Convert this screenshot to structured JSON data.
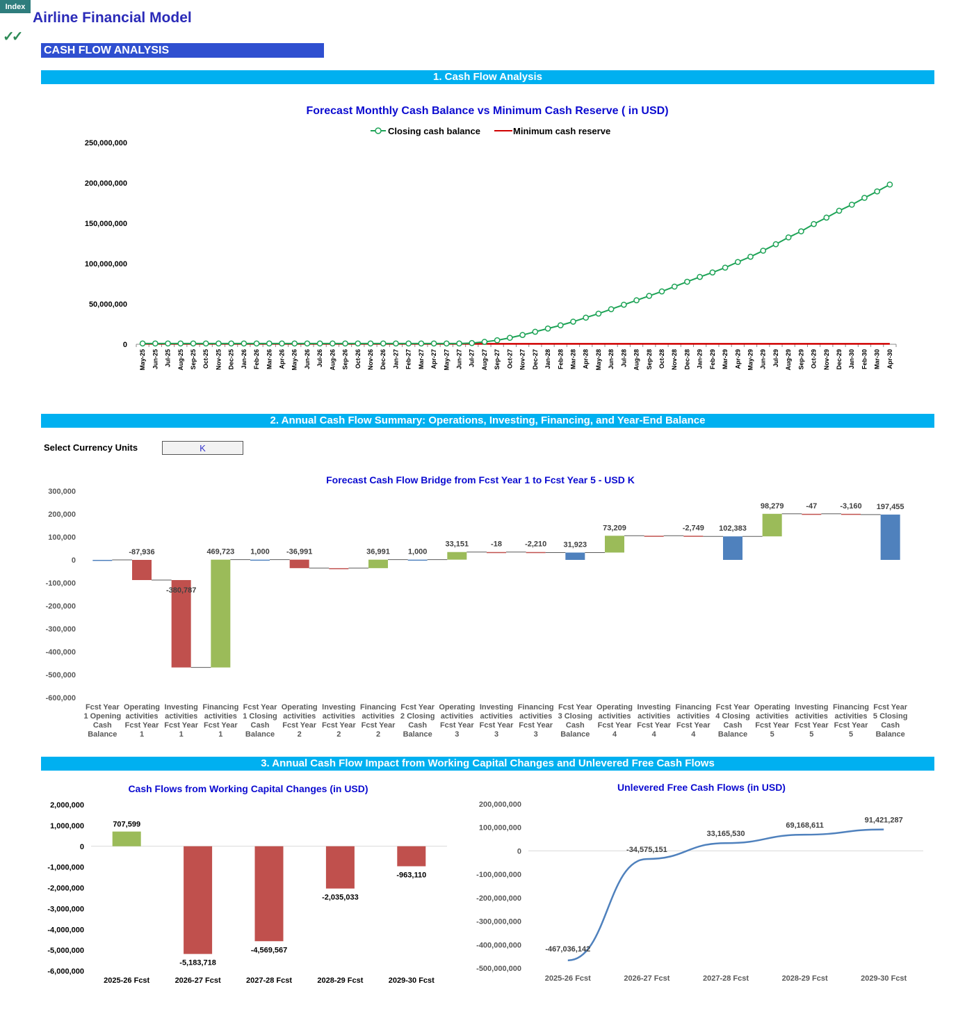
{
  "header": {
    "index_label": "Index",
    "app_title": "Airline Financial Model",
    "check_glyph": "✓✓",
    "section_title": "CASH FLOW ANALYSIS"
  },
  "bands": {
    "band1": "1. Cash Flow Analysis",
    "band2": "2. Annual Cash Flow Summary: Operations, Investing, Financing, and Year-End Balance",
    "band3": "3. Annual Cash Flow Impact from Working Capital Changes and Unlevered Free Cash Flows"
  },
  "currency": {
    "label": "Select Currency Units",
    "value": "K"
  },
  "colors": {
    "band": "#00B0F0",
    "section": "#2F4FD0",
    "title": "#0B0BD0",
    "positive": "#9BBB59",
    "negative": "#C0504D",
    "total": "#4F81BD",
    "line_green": "#1DA356",
    "line_red": "#D00000",
    "line_blue": "#4F81BD"
  },
  "chart_data": [
    {
      "type": "line",
      "title": "Forecast Monthly Cash Balance vs Minimum Cash Reserve ( in USD)",
      "ylim": [
        0,
        250000000
      ],
      "yticks": [
        "250,000,000",
        "200,000,000",
        "150,000,000",
        "100,000,000",
        "50,000,000",
        "0"
      ],
      "x": [
        "May-25",
        "Jun-25",
        "Jul-25",
        "Aug-25",
        "Sep-25",
        "Oct-25",
        "Nov-25",
        "Dec-25",
        "Jan-26",
        "Feb-26",
        "Mar-26",
        "Apr-26",
        "May-26",
        "Jun-26",
        "Jul-26",
        "Aug-26",
        "Sep-26",
        "Oct-26",
        "Nov-26",
        "Dec-26",
        "Jan-27",
        "Feb-27",
        "Mar-27",
        "Apr-27",
        "May-27",
        "Jun-27",
        "Jul-27",
        "Aug-27",
        "Sep-27",
        "Oct-27",
        "Nov-27",
        "Dec-27",
        "Jan-28",
        "Feb-28",
        "Mar-28",
        "Apr-28",
        "May-28",
        "Jun-28",
        "Jul-28",
        "Aug-28",
        "Sep-28",
        "Oct-28",
        "Nov-28",
        "Dec-28",
        "Jan-29",
        "Feb-29",
        "Mar-29",
        "Apr-29",
        "May-29",
        "Jun-29",
        "Jul-29",
        "Aug-29",
        "Sep-29",
        "Oct-29",
        "Nov-29",
        "Dec-29",
        "Jan-30",
        "Feb-30",
        "Mar-30",
        "Apr-30"
      ],
      "legend_position": "top",
      "series": [
        {
          "name": "Closing cash balance",
          "values": [
            1000000,
            1000000,
            1000000,
            1000000,
            1000000,
            1000000,
            1000000,
            1000000,
            1000000,
            1000000,
            1000000,
            1000000,
            1000000,
            1000000,
            1000000,
            1000000,
            1000000,
            1000000,
            1000000,
            1000000,
            1000000,
            1000000,
            1000000,
            1000000,
            1000000,
            1000000,
            1500000,
            3000000,
            5000000,
            8000000,
            11500000,
            15500000,
            19500000,
            23500000,
            28000000,
            33000000,
            38000000,
            43500000,
            49000000,
            54500000,
            60000000,
            65500000,
            71500000,
            77500000,
            83500000,
            89000000,
            95000000,
            102000000,
            108500000,
            116000000,
            124000000,
            132500000,
            140000000,
            149000000,
            157000000,
            165500000,
            173000000,
            181500000,
            189500000,
            198000000
          ]
        },
        {
          "name": "Minimum cash reserve",
          "values": [
            500000,
            500000,
            500000,
            500000,
            500000,
            500000,
            500000,
            500000,
            500000,
            500000,
            500000,
            500000,
            500000,
            500000,
            500000,
            500000,
            500000,
            500000,
            500000,
            500000,
            500000,
            500000,
            500000,
            500000,
            500000,
            500000,
            500000,
            500000,
            500000,
            500000,
            500000,
            500000,
            500000,
            500000,
            500000,
            500000,
            500000,
            500000,
            500000,
            500000,
            500000,
            500000,
            500000,
            500000,
            500000,
            500000,
            500000,
            500000,
            500000,
            500000,
            500000,
            500000,
            500000,
            500000,
            500000,
            500000,
            500000,
            500000,
            500000,
            500000
          ]
        }
      ]
    },
    {
      "type": "bar",
      "subtype": "waterfall",
      "title": "Forecast Cash Flow Bridge from Fcst Year 1 to Fcst Year 5 - USD K",
      "ylim": [
        -600000,
        300000
      ],
      "yticks": [
        "300,000",
        "200,000",
        "100,000",
        "0",
        "-100,000",
        "-200,000",
        "-300,000",
        "-400,000",
        "-500,000",
        "-600,000"
      ],
      "categories": [
        [
          "Fcst Year",
          "1 Opening",
          "Cash",
          "Balance"
        ],
        [
          "Operating",
          "activities",
          "Fcst Year",
          "1"
        ],
        [
          "Investing",
          "activities",
          "Fcst Year",
          "1"
        ],
        [
          "Financing",
          "activities",
          "Fcst Year",
          "1"
        ],
        [
          "Fcst Year",
          "1 Closing",
          "Cash",
          "Balance"
        ],
        [
          "Operating",
          "activities",
          "Fcst Year",
          "2"
        ],
        [
          "Investing",
          "activities",
          "Fcst Year",
          "2"
        ],
        [
          "Financing",
          "activities",
          "Fcst Year",
          "2"
        ],
        [
          "Fcst Year",
          "2 Closing",
          "Cash",
          "Balance"
        ],
        [
          "Operating",
          "activities",
          "Fcst Year",
          "3"
        ],
        [
          "Investing",
          "activities",
          "Fcst Year",
          "3"
        ],
        [
          "Financing",
          "activities",
          "Fcst Year",
          "3"
        ],
        [
          "Fcst Year",
          "3 Closing",
          "Cash",
          "Balance"
        ],
        [
          "Operating",
          "activities",
          "Fcst Year",
          "4"
        ],
        [
          "Investing",
          "activities",
          "Fcst Year",
          "4"
        ],
        [
          "Financing",
          "activities",
          "Fcst Year",
          "4"
        ],
        [
          "Fcst Year",
          "4 Closing",
          "Cash",
          "Balance"
        ],
        [
          "Operating",
          "activities",
          "Fcst Year",
          "5"
        ],
        [
          "Investing",
          "activities",
          "Fcst Year",
          "5"
        ],
        [
          "Financing",
          "activities",
          "Fcst Year",
          "5"
        ],
        [
          "Fcst Year",
          "5 Closing",
          "Cash",
          "Balance"
        ]
      ],
      "bars": [
        {
          "from": 0,
          "to": 0,
          "kind": "total",
          "label": ""
        },
        {
          "from": 0,
          "to": -87936,
          "kind": "neg",
          "label": "-87,936"
        },
        {
          "from": -87936,
          "to": -468723,
          "kind": "neg",
          "label": "-380,787"
        },
        {
          "from": -468723,
          "to": 1000,
          "kind": "pos",
          "label": "469,723"
        },
        {
          "from": 0,
          "to": 1000,
          "kind": "total",
          "label": "1,000"
        },
        {
          "from": 1000,
          "to": -35991,
          "kind": "neg",
          "label": "-36,991"
        },
        {
          "from": -35991,
          "to": -35991,
          "kind": "neg",
          "label": ""
        },
        {
          "from": -35991,
          "to": 1000,
          "kind": "pos",
          "label": "36,991"
        },
        {
          "from": 0,
          "to": 1000,
          "kind": "total",
          "label": "1,000"
        },
        {
          "from": 1000,
          "to": 34151,
          "kind": "pos",
          "label": "33,151"
        },
        {
          "from": 34151,
          "to": 34133,
          "kind": "neg",
          "label": "-18"
        },
        {
          "from": 34133,
          "to": 31923,
          "kind": "neg",
          "label": "-2,210"
        },
        {
          "from": 0,
          "to": 31923,
          "kind": "total",
          "label": "31,923"
        },
        {
          "from": 31923,
          "to": 105132,
          "kind": "pos",
          "label": "73,209"
        },
        {
          "from": 105132,
          "to": 105132,
          "kind": "neg",
          "label": ""
        },
        {
          "from": 105132,
          "to": 102383,
          "kind": "neg",
          "label": "-2,749"
        },
        {
          "from": 0,
          "to": 102383,
          "kind": "total",
          "label": "102,383"
        },
        {
          "from": 102383,
          "to": 200662,
          "kind": "pos",
          "label": "98,279"
        },
        {
          "from": 200662,
          "to": 200615,
          "kind": "neg",
          "label": "-47"
        },
        {
          "from": 200615,
          "to": 197455,
          "kind": "neg",
          "label": "-3,160"
        },
        {
          "from": 0,
          "to": 197455,
          "kind": "total",
          "label": "197,455"
        }
      ]
    },
    {
      "type": "bar",
      "title": "Cash Flows from Working Capital Changes (in USD)",
      "ylim": [
        -6000000,
        2000000
      ],
      "yticks": [
        "2,000,000",
        "1,000,000",
        "0",
        "-1,000,000",
        "-2,000,000",
        "-3,000,000",
        "-4,000,000",
        "-5,000,000",
        "-6,000,000"
      ],
      "categories": [
        "2025-26 Fcst",
        "2026-27 Fcst",
        "2027-28 Fcst",
        "2028-29 Fcst",
        "2029-30 Fcst"
      ],
      "values": [
        707599,
        -5183718,
        -4569567,
        -2035033,
        -963110
      ],
      "labels": [
        "707,599",
        "-5,183,718",
        "-4,569,567",
        "-2,035,033",
        "-963,110"
      ]
    },
    {
      "type": "line",
      "title": "Unlevered Free Cash Flows (in USD)",
      "ylim": [
        -500000000,
        200000000
      ],
      "yticks": [
        "200,000,000",
        "100,000,000",
        "0",
        "-100,000,000",
        "-200,000,000",
        "-300,000,000",
        "-400,000,000",
        "-500,000,000"
      ],
      "categories": [
        "2025-26 Fcst",
        "2026-27 Fcst",
        "2027-28 Fcst",
        "2028-29 Fcst",
        "2029-30 Fcst"
      ],
      "values": [
        -467036142,
        -34575151,
        33165530,
        69168611,
        91421287
      ],
      "labels": [
        "-467,036,142",
        "-34,575,151",
        "33,165,530",
        "69,168,611",
        "91,421,287"
      ]
    }
  ]
}
